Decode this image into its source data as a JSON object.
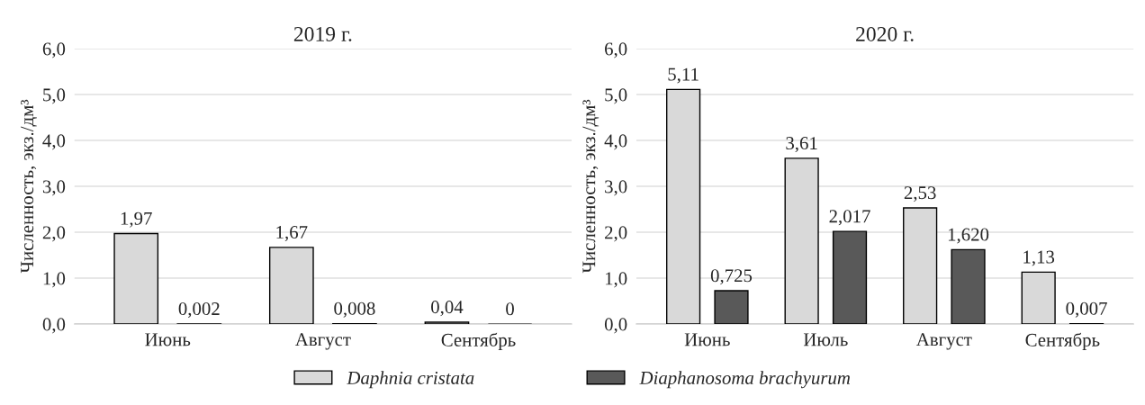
{
  "chart_data": [
    {
      "type": "bar",
      "title": "2019 г.",
      "ylabel": "Численность, экз./дм³",
      "categories": [
        "Июнь",
        "Август",
        "Сентябрь"
      ],
      "ylim": [
        0,
        6
      ],
      "yticks": [
        {
          "value": 0,
          "label": "0,0"
        },
        {
          "value": 1,
          "label": "1,0"
        },
        {
          "value": 2,
          "label": "2,0"
        },
        {
          "value": 3,
          "label": "3,0"
        },
        {
          "value": 4,
          "label": "4,0"
        },
        {
          "value": 5,
          "label": "5,0"
        },
        {
          "value": 6,
          "label": "6,0"
        }
      ],
      "grid": "y",
      "series": [
        {
          "color": "#d9d9d9",
          "values": [
            1.97,
            1.67,
            0.04
          ],
          "value_labels": [
            "1,97",
            "1,67",
            "0,04"
          ]
        },
        {
          "color": "#595959",
          "values": [
            0.002,
            0.008,
            0
          ],
          "value_labels": [
            "0,002",
            "0,008",
            "0"
          ]
        }
      ]
    },
    {
      "type": "bar",
      "title": "2020 г.",
      "ylabel": "Численность, экз./дм³",
      "categories": [
        "Июнь",
        "Июль",
        "Август",
        "Сентябрь"
      ],
      "ylim": [
        0,
        6
      ],
      "yticks": [
        {
          "value": 0,
          "label": "0,0"
        },
        {
          "value": 1,
          "label": "1,0"
        },
        {
          "value": 2,
          "label": "2,0"
        },
        {
          "value": 3,
          "label": "3,0"
        },
        {
          "value": 4,
          "label": "4,0"
        },
        {
          "value": 5,
          "label": "5,0"
        },
        {
          "value": 6,
          "label": "6,0"
        }
      ],
      "grid": "y",
      "legend": "bottom",
      "series": [
        {
          "name": "Daphnia cristata",
          "color": "#d9d9d9",
          "values": [
            5.11,
            3.61,
            2.53,
            1.13
          ],
          "value_labels": [
            "5,11",
            "3,61",
            "2,53",
            "1,13"
          ]
        },
        {
          "name": "Diaphanosoma brachyurum",
          "color": "#595959",
          "values": [
            0.725,
            2.017,
            1.62,
            0.007
          ],
          "value_labels": [
            "0,725",
            "2,017",
            "1,620",
            "0,007"
          ]
        }
      ]
    }
  ]
}
